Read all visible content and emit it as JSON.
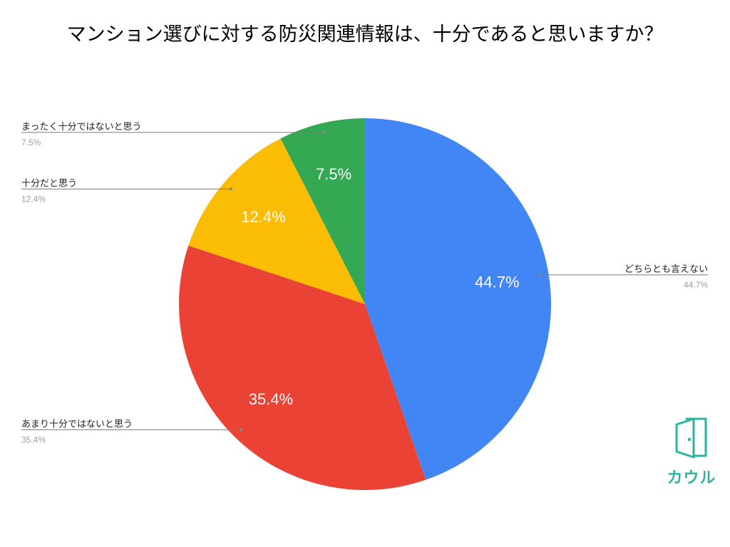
{
  "chart_data": {
    "type": "pie",
    "title": "マンション選びに対する防災関連情報は、十分であると思いますか？",
    "categories": [
      "どちらとも言えない",
      "あまり十分ではないと思う",
      "十分だと思う",
      "まったく十分ではないと思う"
    ],
    "values": [
      44.7,
      35.4,
      12.4,
      7.5
    ],
    "unit": "%",
    "colors": [
      "#4285F4",
      "#EA4335",
      "#FBBC04",
      "#34A853"
    ]
  },
  "brand": {
    "name": "カウル",
    "icon": "door-icon",
    "color": "#2BB59E"
  }
}
